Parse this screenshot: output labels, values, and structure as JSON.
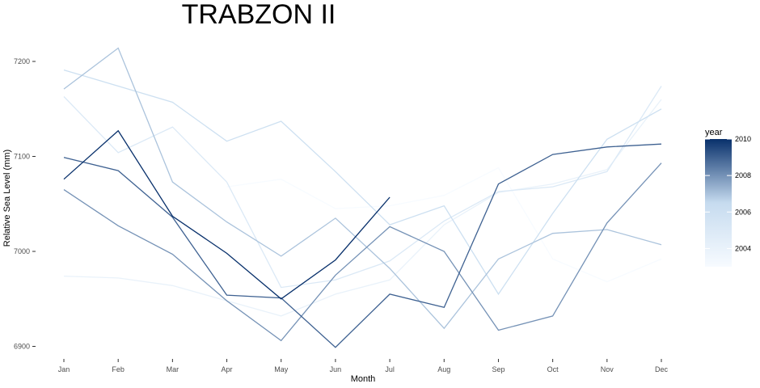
{
  "chart_data": {
    "type": "line",
    "title": "TRABZON II",
    "xlabel": "Month",
    "ylabel": "Relative Sea Level (mm)",
    "categories": [
      "Jan",
      "Feb",
      "Mar",
      "Apr",
      "May",
      "Jun",
      "Jul",
      "Aug",
      "Sep",
      "Oct",
      "Nov",
      "Dec"
    ],
    "ylim": [
      6888,
      7224
    ],
    "yticks": [
      6900,
      7000,
      7100,
      7200
    ],
    "grid": false,
    "legend": {
      "title": "year",
      "placement": "right",
      "ticks": [
        2004,
        2006,
        2008,
        2010
      ],
      "range": [
        2003,
        2010
      ],
      "color_low": "#f7fbff",
      "color_high": "#08306b"
    },
    "series": [
      {
        "year": 2003,
        "values": [
          null,
          null,
          null,
          7068,
          7076,
          7045,
          7048,
          7059,
          7088,
          6992,
          6968,
          6992
        ]
      },
      {
        "year": 2004,
        "values": [
          6974,
          6972,
          6964,
          6948,
          6932,
          6955,
          6970,
          7028,
          7062,
          7071,
          7086,
          7160
        ]
      },
      {
        "year": 2005,
        "values": [
          7163,
          7104,
          7131,
          7073,
          6962,
          6970,
          6990,
          7032,
          7063,
          7068,
          7084,
          7174
        ]
      },
      {
        "year": 2006,
        "values": [
          7191,
          7174,
          7157,
          7116,
          7137,
          7084,
          7028,
          7048,
          6955,
          7040,
          7118,
          7150
        ]
      },
      {
        "year": 2007,
        "values": [
          7171,
          7214,
          7073,
          7031,
          6995,
          7035,
          6982,
          6919,
          6992,
          7019,
          7023,
          7007
        ]
      },
      {
        "year": 2008,
        "values": [
          7065,
          7027,
          6997,
          6948,
          6906,
          6975,
          7026,
          7000,
          6917,
          6932,
          7030,
          7093
        ]
      },
      {
        "year": 2009,
        "values": [
          7099,
          7085,
          7036,
          6954,
          6951,
          6899,
          6955,
          6941,
          7071,
          7102,
          7110,
          7113
        ]
      },
      {
        "year": 2010,
        "values": [
          7076,
          7127,
          7037,
          6998,
          6950,
          6991,
          7057,
          null,
          null,
          null,
          null,
          null
        ]
      }
    ]
  }
}
